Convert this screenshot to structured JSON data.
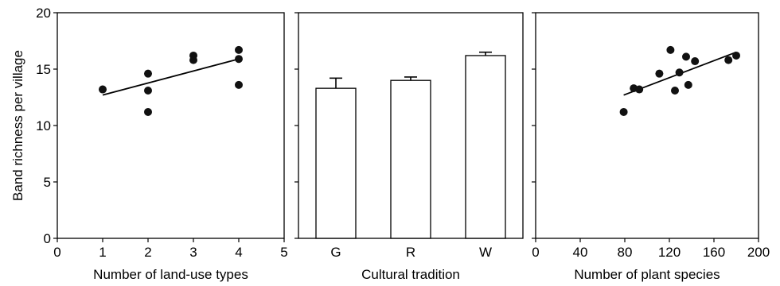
{
  "chart_data": [
    {
      "type": "scatter",
      "panel": "left",
      "xlabel": "Number of land-use types",
      "ylabel": "Band richness per village",
      "xlim": [
        0,
        5
      ],
      "ylim": [
        0,
        20
      ],
      "x_ticks": [
        0,
        1,
        2,
        3,
        4,
        5
      ],
      "y_ticks": [
        0,
        5,
        10,
        15,
        20
      ],
      "points": [
        {
          "x": 1,
          "y": 13.2
        },
        {
          "x": 2,
          "y": 14.6
        },
        {
          "x": 2,
          "y": 13.1
        },
        {
          "x": 2,
          "y": 11.2
        },
        {
          "x": 3,
          "y": 16.2
        },
        {
          "x": 3,
          "y": 15.8
        },
        {
          "x": 4,
          "y": 16.7
        },
        {
          "x": 4,
          "y": 15.9
        },
        {
          "x": 4,
          "y": 13.6
        }
      ],
      "trendline": {
        "x": [
          1,
          4
        ],
        "y": [
          12.7,
          15.9
        ]
      },
      "grid": false
    },
    {
      "type": "bar",
      "panel": "middle",
      "xlabel": "Cultural tradition",
      "categories": [
        "G",
        "R",
        "W"
      ],
      "values": [
        13.3,
        14.0,
        16.2
      ],
      "errors": [
        0.9,
        0.3,
        0.3
      ],
      "ylim": [
        0,
        20
      ],
      "grid": false
    },
    {
      "type": "scatter",
      "panel": "right",
      "xlabel": "Number of plant species",
      "xlim": [
        0,
        200
      ],
      "ylim": [
        0,
        20
      ],
      "x_ticks": [
        0,
        40,
        80,
        120,
        160,
        200
      ],
      "points": [
        {
          "x": 79,
          "y": 11.2
        },
        {
          "x": 88,
          "y": 13.3
        },
        {
          "x": 93,
          "y": 13.2
        },
        {
          "x": 111,
          "y": 14.6
        },
        {
          "x": 121,
          "y": 16.7
        },
        {
          "x": 125,
          "y": 13.1
        },
        {
          "x": 129,
          "y": 14.7
        },
        {
          "x": 135,
          "y": 16.1
        },
        {
          "x": 137,
          "y": 13.6
        },
        {
          "x": 143,
          "y": 15.7
        },
        {
          "x": 173,
          "y": 15.8
        },
        {
          "x": 180,
          "y": 16.2
        }
      ],
      "trendline": {
        "x": [
          79,
          180
        ],
        "y": [
          12.7,
          16.5
        ]
      },
      "grid": false
    }
  ]
}
